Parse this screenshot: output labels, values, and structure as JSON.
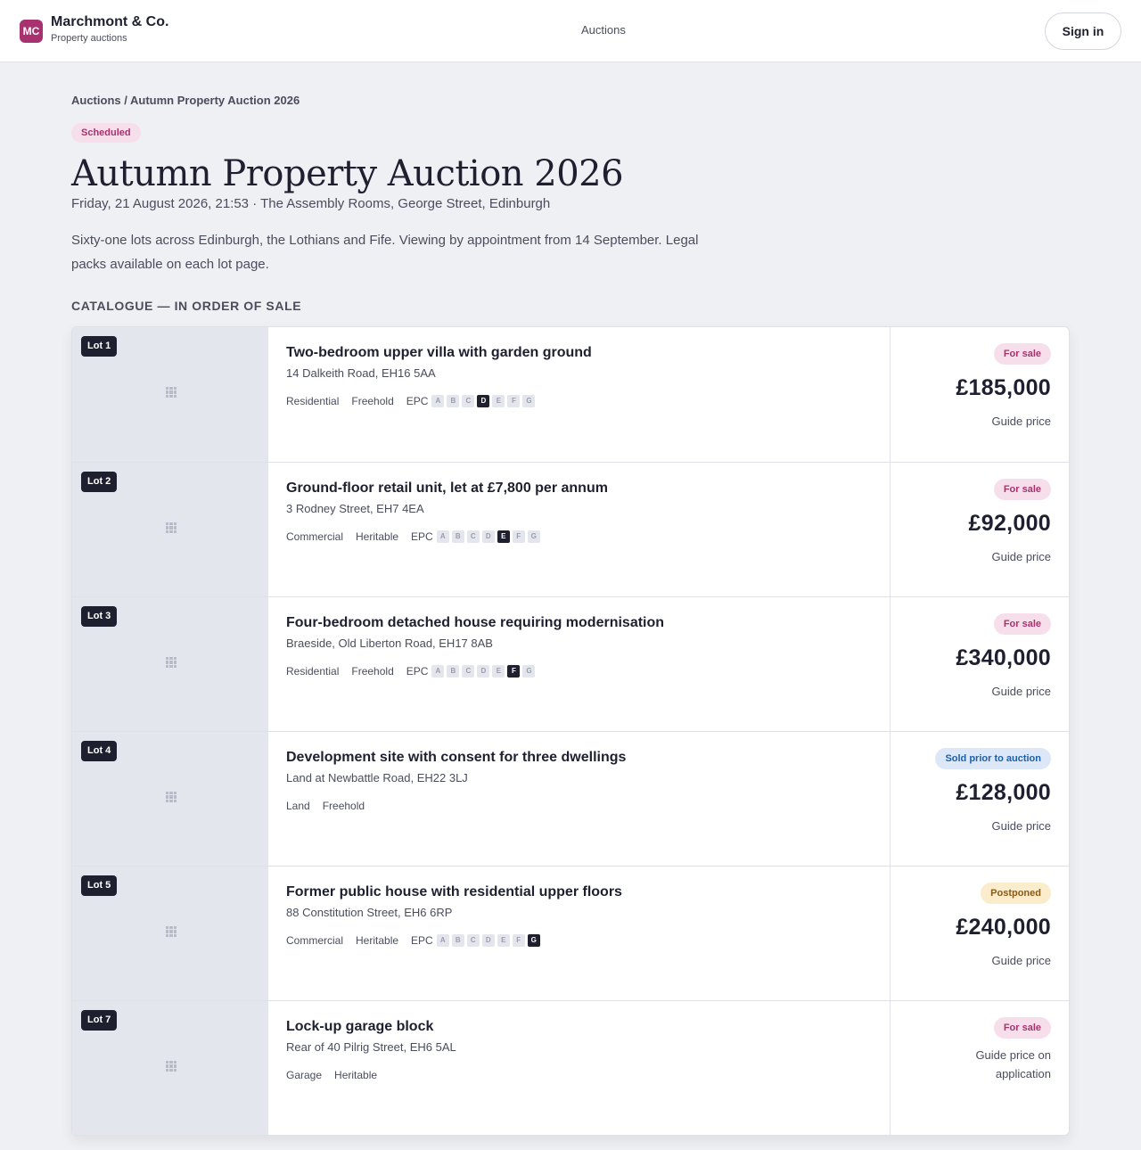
{
  "header": {
    "logo_initials": "MC",
    "brand_name": "Marchmont & Co.",
    "brand_sub": "Property auctions",
    "nav_auctions": "Auctions",
    "sign_in": "Sign in"
  },
  "breadcrumb": {
    "parent": "Auctions",
    "separator": " / ",
    "current": "Autumn Property Auction 2026"
  },
  "auction": {
    "status": "Scheduled",
    "title": "Autumn Property Auction 2026",
    "subline": "Friday, 21 August 2026, 21:53 · The Assembly Rooms, George Street, Edinburgh",
    "description": "Sixty-one lots across Edinburgh, the Lothians and Fife. Viewing by appointment from 14 September. Legal packs available on each lot page."
  },
  "catalogue": {
    "label": "CATALOGUE — IN ORDER OF SALE",
    "epc_label": "EPC",
    "epc_bands": [
      "A",
      "B",
      "C",
      "D",
      "E",
      "F",
      "G"
    ],
    "lots": [
      {
        "badge": "Lot 1",
        "title": "Two-bedroom upper villa with garden ground",
        "address": "14 Dalkeith Road, EH16 5AA",
        "type": "Residential",
        "tenure": "Freehold",
        "epc": "D",
        "status": "For sale",
        "status_kind": "sale",
        "price": "£185,000",
        "price_caption": "Guide price"
      },
      {
        "badge": "Lot 2",
        "title": "Ground-floor retail unit, let at £7,800 per annum",
        "address": "3 Rodney Street, EH7 4EA",
        "type": "Commercial",
        "tenure": "Heritable",
        "epc": "E",
        "status": "For sale",
        "status_kind": "sale",
        "price": "£92,000",
        "price_caption": "Guide price"
      },
      {
        "badge": "Lot 3",
        "title": "Four-bedroom detached house requiring modernisation",
        "address": "Braeside, Old Liberton Road, EH17 8AB",
        "type": "Residential",
        "tenure": "Freehold",
        "epc": "F",
        "status": "For sale",
        "status_kind": "sale",
        "price": "£340,000",
        "price_caption": "Guide price"
      },
      {
        "badge": "Lot 4",
        "title": "Development site with consent for three dwellings",
        "address": "Land at Newbattle Road, EH22 3LJ",
        "type": "Land",
        "tenure": "Freehold",
        "epc": null,
        "status": "Sold prior to auction",
        "status_kind": "sold",
        "price": "£128,000",
        "price_caption": "Guide price"
      },
      {
        "badge": "Lot 5",
        "title": "Former public house with residential upper floors",
        "address": "88 Constitution Street, EH6 6RP",
        "type": "Commercial",
        "tenure": "Heritable",
        "epc": "G",
        "status": "Postponed",
        "status_kind": "postponed",
        "price": "£240,000",
        "price_caption": "Guide price"
      },
      {
        "badge": "Lot 7",
        "title": "Lock-up garage block",
        "address": "Rear of 40 Pilrig Street, EH6 5AL",
        "type": "Garage",
        "tenure": "Heritable",
        "epc": null,
        "status": "For sale",
        "status_kind": "sale",
        "price": null,
        "price_caption": "Guide price on application"
      }
    ]
  },
  "icons": {
    "thumbnail_placeholder": "grid-icon"
  }
}
